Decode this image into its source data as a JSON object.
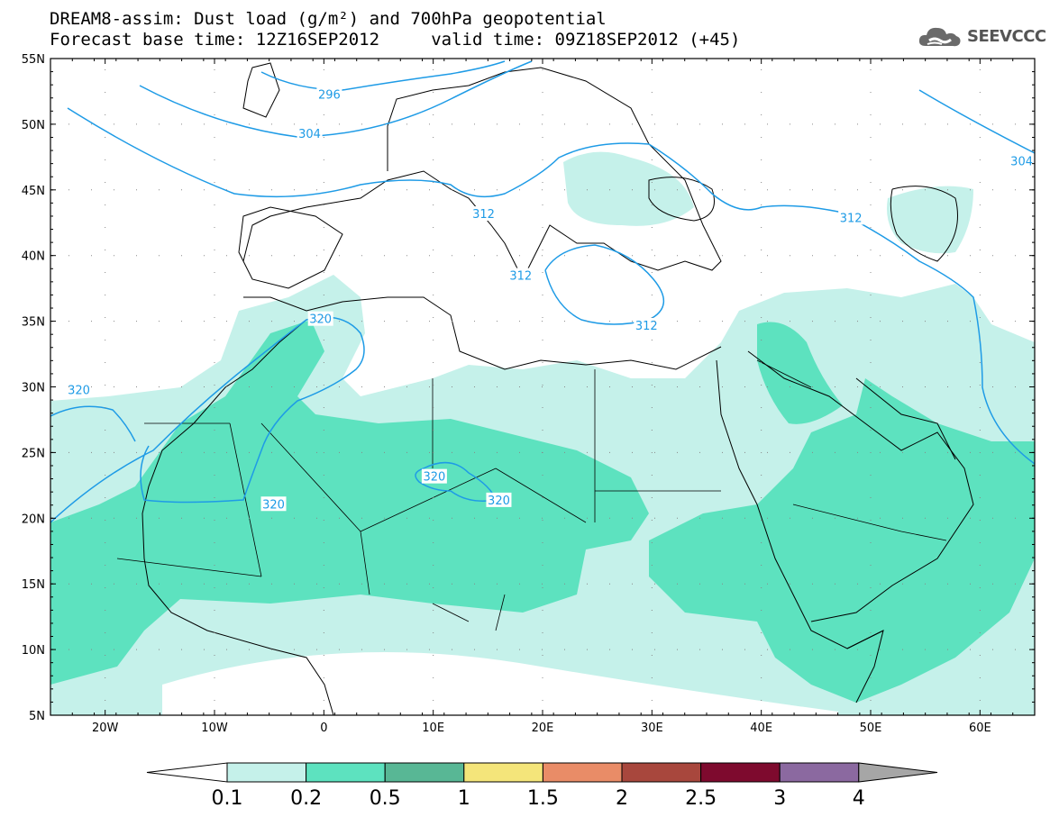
{
  "title": {
    "line1": "DREAM8-assim: Dust load (g/m²) and 700hPa geopotential",
    "line2": "Forecast base time: 12Z16SEP2012     valid time: 09Z18SEP2012 (+45)"
  },
  "logo": {
    "text": "SEEVCCC",
    "icon": "cloud-icon"
  },
  "map": {
    "lat_labels": [
      "55N",
      "50N",
      "45N",
      "40N",
      "35N",
      "30N",
      "25N",
      "20N",
      "15N",
      "10N",
      "5N"
    ],
    "lon_labels": [
      "20W",
      "10W",
      "0",
      "10E",
      "20E",
      "30E",
      "40E",
      "50E",
      "60E"
    ],
    "lon_range": [
      -25,
      65
    ],
    "lat_range": [
      5,
      55
    ],
    "contour_labels": [
      {
        "text": "296",
        "lon": 0.5,
        "lat": 52.3
      },
      {
        "text": "304",
        "lon": -1.3,
        "lat": 49.3
      },
      {
        "text": "304",
        "lon": 67.0,
        "lat": 47.2
      },
      {
        "text": "312",
        "lon": 14.6,
        "lat": 43.2
      },
      {
        "text": "312",
        "lon": 48.2,
        "lat": 42.9
      },
      {
        "text": "312",
        "lon": 18.0,
        "lat": 38.5
      },
      {
        "text": "312",
        "lon": 29.5,
        "lat": 34.7
      },
      {
        "text": "320",
        "lon": -0.3,
        "lat": 35.2
      },
      {
        "text": "320",
        "lon": -22.4,
        "lat": 29.8
      },
      {
        "text": "320",
        "lon": 10.1,
        "lat": 23.2
      },
      {
        "text": "320",
        "lon": 16.0,
        "lat": 21.4
      },
      {
        "text": "320",
        "lon": -4.6,
        "lat": 21.1
      }
    ],
    "colors": {
      "contour": "#1e9be6",
      "land_border": "#000000"
    }
  },
  "colorbar": {
    "labels": [
      "0.1",
      "0.2",
      "0.5",
      "1",
      "1.5",
      "2",
      "2.5",
      "3",
      "4"
    ],
    "colors": [
      "#ffffff",
      "#c5f1ea",
      "#5de2bf",
      "#58b795",
      "#f4e57a",
      "#e98c67",
      "#a8473d",
      "#7e0a2e",
      "#8b69a0",
      "#a6a6a6"
    ]
  }
}
